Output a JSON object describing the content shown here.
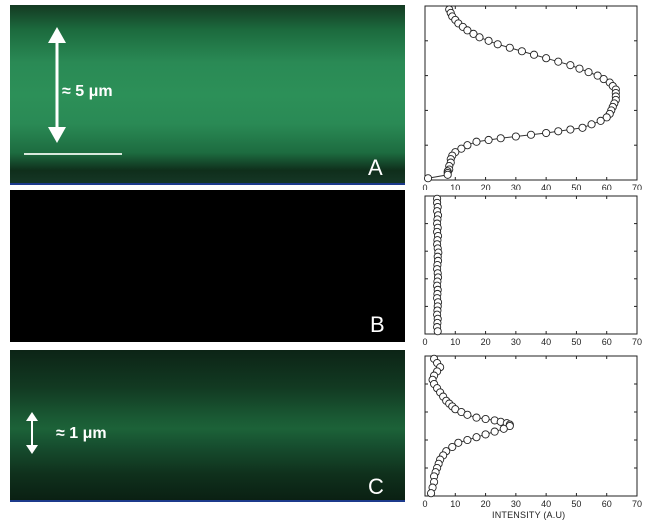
{
  "figure": {
    "panels": [
      {
        "letter": "A",
        "scale_label": "≈ 5 μm"
      },
      {
        "letter": "B",
        "scale_label": ""
      },
      {
        "letter": "C",
        "scale_label": "≈ 1 μm"
      }
    ],
    "x_axis_label": "INTENSITY (A.U)"
  },
  "chart_data": [
    {
      "type": "scatter",
      "title": "",
      "xlabel": "",
      "ylabel": "",
      "xlim": [
        0,
        70
      ],
      "xticks": [
        0,
        10,
        20,
        30,
        40,
        50,
        60,
        70
      ],
      "ylim": [
        0,
        1
      ],
      "x": [
        8,
        8.5,
        9,
        10,
        11,
        12.5,
        14,
        16,
        18,
        21,
        24,
        28,
        32,
        36,
        40,
        44,
        48,
        51,
        54,
        57,
        59,
        61,
        62,
        63,
        63,
        63,
        63,
        62.5,
        62,
        61.5,
        61,
        60,
        58,
        55,
        52,
        48,
        44,
        40,
        35,
        30,
        25,
        21,
        17,
        14,
        12,
        10,
        9,
        8.5,
        8.5,
        8,
        8,
        7.5,
        7.5,
        7.5,
        1
      ],
      "y": [
        0.98,
        0.96,
        0.94,
        0.92,
        0.9,
        0.88,
        0.86,
        0.84,
        0.82,
        0.8,
        0.78,
        0.76,
        0.74,
        0.72,
        0.7,
        0.68,
        0.66,
        0.64,
        0.62,
        0.6,
        0.58,
        0.56,
        0.54,
        0.52,
        0.5,
        0.48,
        0.46,
        0.44,
        0.42,
        0.4,
        0.38,
        0.36,
        0.34,
        0.32,
        0.3,
        0.29,
        0.28,
        0.27,
        0.26,
        0.25,
        0.24,
        0.23,
        0.22,
        0.2,
        0.18,
        0.16,
        0.14,
        0.12,
        0.1,
        0.08,
        0.06,
        0.05,
        0.04,
        0.03,
        0.01
      ]
    },
    {
      "type": "scatter",
      "title": "",
      "xlabel": "",
      "ylabel": "",
      "xlim": [
        0,
        70
      ],
      "xticks": [
        0,
        10,
        20,
        30,
        40,
        50,
        60,
        70
      ],
      "ylim": [
        0,
        1
      ],
      "x": [
        4,
        4,
        4.2,
        4,
        4.3,
        4.1,
        4,
        4.2,
        4,
        4.3,
        4.1,
        4,
        4.2,
        4.4,
        4.2,
        4.3,
        4.1,
        4,
        4.2,
        4.3,
        4.1,
        4,
        4.2,
        4.1,
        4,
        4.3,
        4.2,
        4.1,
        4,
        4.2,
        4.1,
        4,
        4.2
      ],
      "y": [
        0.98,
        0.95,
        0.92,
        0.89,
        0.86,
        0.83,
        0.8,
        0.77,
        0.74,
        0.71,
        0.68,
        0.65,
        0.62,
        0.59,
        0.56,
        0.53,
        0.5,
        0.47,
        0.44,
        0.41,
        0.38,
        0.35,
        0.32,
        0.29,
        0.26,
        0.23,
        0.2,
        0.17,
        0.14,
        0.11,
        0.08,
        0.05,
        0.02
      ]
    },
    {
      "type": "scatter",
      "title": "",
      "xlabel": "",
      "ylabel": "",
      "xlim": [
        0,
        70
      ],
      "xticks": [
        0,
        10,
        20,
        30,
        40,
        50,
        60,
        70
      ],
      "ylim": [
        0,
        1
      ],
      "x": [
        3,
        4,
        5,
        4,
        3,
        2.5,
        3,
        4,
        5,
        6,
        7,
        8,
        9,
        10,
        12,
        14,
        17,
        20,
        23,
        25,
        27,
        28,
        28,
        26,
        23,
        20,
        17,
        14,
        11,
        9,
        7,
        6,
        5,
        4.5,
        4,
        3.5,
        3,
        3,
        2.5,
        2
      ],
      "y": [
        0.98,
        0.95,
        0.92,
        0.89,
        0.86,
        0.83,
        0.8,
        0.77,
        0.74,
        0.71,
        0.68,
        0.66,
        0.64,
        0.62,
        0.6,
        0.58,
        0.56,
        0.55,
        0.54,
        0.53,
        0.52,
        0.51,
        0.5,
        0.48,
        0.46,
        0.44,
        0.42,
        0.4,
        0.38,
        0.35,
        0.32,
        0.29,
        0.26,
        0.23,
        0.2,
        0.17,
        0.14,
        0.1,
        0.06,
        0.02
      ]
    }
  ]
}
